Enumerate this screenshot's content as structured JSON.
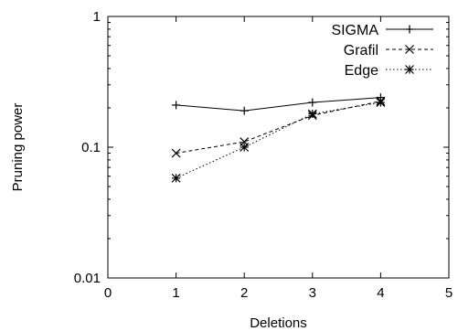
{
  "chart_data": {
    "type": "line",
    "title": "",
    "xlabel": "Deletions",
    "ylabel": "Pruning power",
    "xlim": [
      0,
      5
    ],
    "ylim": [
      0.01,
      1
    ],
    "yscale": "log",
    "grid": false,
    "legend_position": "top-right",
    "xticks": [
      0,
      1,
      2,
      3,
      4,
      5
    ],
    "xtick_labels": [
      "0",
      "1",
      "2",
      "3",
      "4",
      "5"
    ],
    "yticks": [
      0.01,
      0.1,
      1
    ],
    "ytick_labels": [
      "0.01",
      "0.1",
      "1"
    ],
    "x": [
      1,
      2,
      3,
      4
    ],
    "series": [
      {
        "name": "SIGMA",
        "marker": "plus",
        "line_style": "solid",
        "values": [
          0.21,
          0.19,
          0.22,
          0.24
        ]
      },
      {
        "name": "Grafil",
        "marker": "cross",
        "line_style": "dashed",
        "values": [
          0.09,
          0.11,
          0.175,
          0.225
        ]
      },
      {
        "name": "Edge",
        "marker": "star",
        "line_style": "dotted",
        "values": [
          0.058,
          0.1,
          0.18,
          0.22
        ]
      }
    ]
  }
}
